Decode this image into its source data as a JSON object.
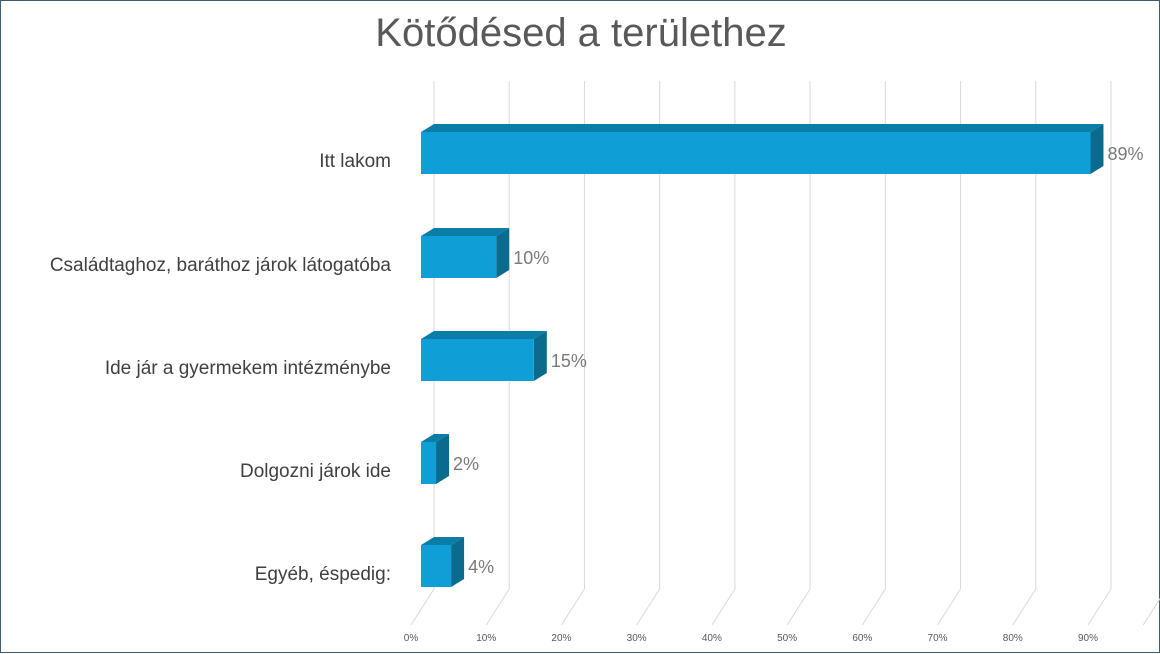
{
  "chart_data": {
    "type": "bar",
    "orientation": "horizontal",
    "title": "Kötődésed a területhez",
    "categories": [
      "Itt lakom",
      "Családtaghoz, baráthoz járok látogatóba",
      "Ide jár a gyermekem intézménybe",
      "Dolgozni járok ide",
      "Egyéb, éspedig:"
    ],
    "values": [
      89,
      10,
      15,
      2,
      4
    ],
    "data_labels": [
      "89%",
      "10%",
      "15%",
      "2%",
      "4%"
    ],
    "x_ticks": [
      "0%",
      "10%",
      "20%",
      "30%",
      "40%",
      "50%",
      "60%",
      "70%",
      "80%",
      "90%"
    ],
    "xlim": [
      0,
      90
    ],
    "xlabel": "",
    "ylabel": "",
    "grid": true,
    "legend": "none",
    "style": "3d",
    "colors": {
      "bar_front": "#0f9ed5",
      "bar_top": "#0b7ea8",
      "bar_side": "#0a6b8f",
      "grid": "#d9d9d9"
    }
  }
}
